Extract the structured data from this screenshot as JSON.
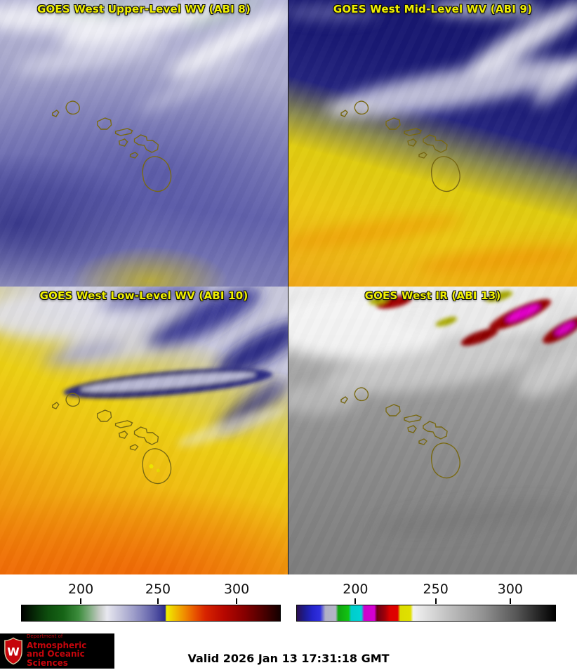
{
  "panels": [
    {
      "title": "GOES West Upper-Level WV (ABI 8)"
    },
    {
      "title": "GOES West Mid-Level WV (ABI 9)"
    },
    {
      "title": "GOES West Low-Level WV (ABI 10)"
    },
    {
      "title": "GOES West IR (ABI 13)"
    }
  ],
  "colorbars": [
    {
      "name": "wv-colorbar",
      "ticks": [
        {
          "label": "200",
          "pos": 23
        },
        {
          "label": "250",
          "pos": 52.7
        },
        {
          "label": "300",
          "pos": 83
        }
      ],
      "stops": [
        {
          "p": 0,
          "c": "#000000"
        },
        {
          "p": 5,
          "c": "#062906"
        },
        {
          "p": 10,
          "c": "#0d4d0d"
        },
        {
          "p": 16,
          "c": "#166416"
        },
        {
          "p": 22,
          "c": "#3c8c3c"
        },
        {
          "p": 26,
          "c": "#7cac7c"
        },
        {
          "p": 30,
          "c": "#c4cac4"
        },
        {
          "p": 33,
          "c": "#e8e8f0"
        },
        {
          "p": 38,
          "c": "#c4c4dc"
        },
        {
          "p": 43,
          "c": "#a0a0cb"
        },
        {
          "p": 48,
          "c": "#7878b6"
        },
        {
          "p": 52,
          "c": "#5252a2"
        },
        {
          "p": 55.5,
          "c": "#2c2c8c"
        },
        {
          "p": 56,
          "c": "#f0f000"
        },
        {
          "p": 59,
          "c": "#f0c400"
        },
        {
          "p": 63,
          "c": "#f08c00"
        },
        {
          "p": 67,
          "c": "#e85400"
        },
        {
          "p": 71,
          "c": "#d82400"
        },
        {
          "p": 78,
          "c": "#b80800"
        },
        {
          "p": 86,
          "c": "#880000"
        },
        {
          "p": 93,
          "c": "#500000"
        },
        {
          "p": 100,
          "c": "#140000"
        }
      ]
    },
    {
      "name": "ir-colorbar",
      "ticks": [
        {
          "label": "200",
          "pos": 22.8
        },
        {
          "label": "250",
          "pos": 53.7
        },
        {
          "label": "300",
          "pos": 82.4
        }
      ],
      "stops": [
        {
          "p": 0,
          "c": "#2c0e50"
        },
        {
          "p": 3,
          "c": "#1c1c92"
        },
        {
          "p": 6,
          "c": "#2424cc"
        },
        {
          "p": 9,
          "c": "#3030e0"
        },
        {
          "p": 11,
          "c": "#b0b0c4"
        },
        {
          "p": 15,
          "c": "#b4b4c8"
        },
        {
          "p": 16,
          "c": "#10a410"
        },
        {
          "p": 20,
          "c": "#12c412"
        },
        {
          "p": 21,
          "c": "#00cccc"
        },
        {
          "p": 25,
          "c": "#00d4d4"
        },
        {
          "p": 26,
          "c": "#cc00cc"
        },
        {
          "p": 30,
          "c": "#d400d4"
        },
        {
          "p": 31,
          "c": "#6a0016"
        },
        {
          "p": 34,
          "c": "#a00008"
        },
        {
          "p": 36,
          "c": "#dc0000"
        },
        {
          "p": 39,
          "c": "#e00000"
        },
        {
          "p": 40,
          "c": "#dcdc00"
        },
        {
          "p": 44,
          "c": "#e0e000"
        },
        {
          "p": 45,
          "c": "#f2f2f2"
        },
        {
          "p": 58,
          "c": "#c2c2c2"
        },
        {
          "p": 72,
          "c": "#929292"
        },
        {
          "p": 85,
          "c": "#565656"
        },
        {
          "p": 100,
          "c": "#000000"
        }
      ]
    }
  ],
  "footer": {
    "valid_time": "Valid 2026 Jan 13 17:31:18 GMT",
    "logo": {
      "dept_line": "Department of",
      "line1": "Atmospheric",
      "line2": "and Oceanic Sciences",
      "crest_letter": "W"
    }
  },
  "colors": {
    "panel_title": "#f0f000",
    "island_outline": "#786810",
    "logo_background": "#000000",
    "logo_text": "#c5050c",
    "valid_text": "#000000",
    "ir_cold_red": "#980000",
    "ir_cold_magenta": "#e400cc"
  }
}
